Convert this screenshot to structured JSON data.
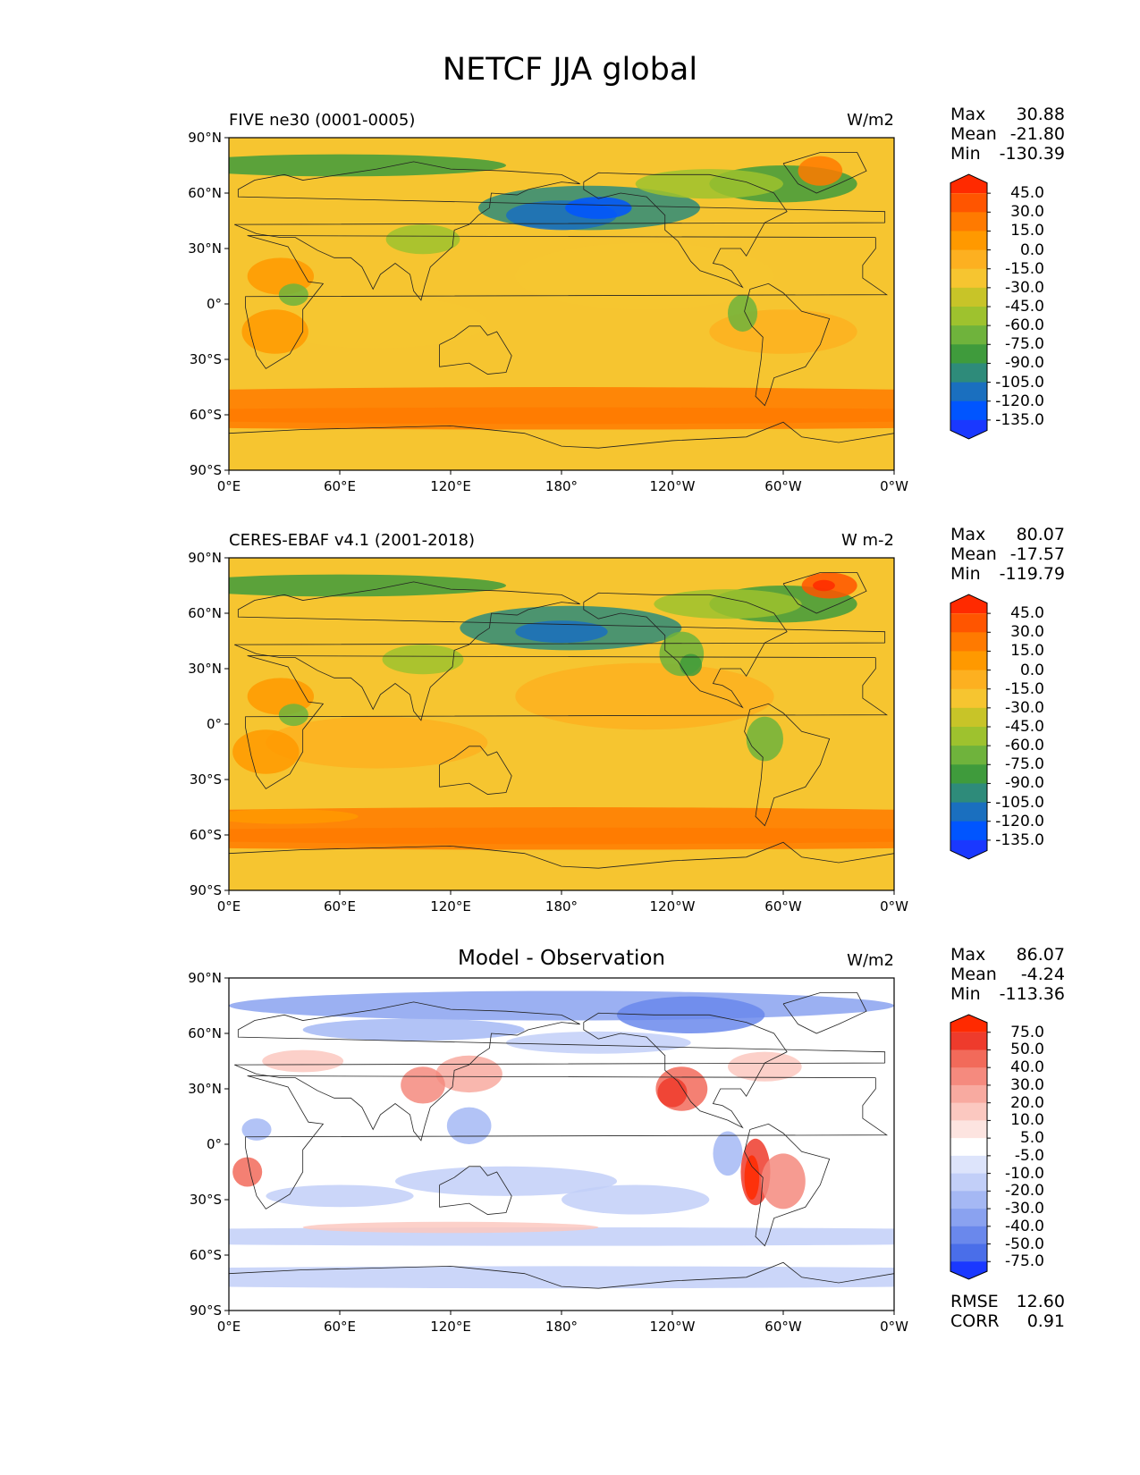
{
  "title": "NETCF JJA global",
  "lat_ticks": [
    "90°N",
    "60°N",
    "30°N",
    "0°",
    "30°S",
    "60°S",
    "90°S"
  ],
  "lon_ticks": [
    "0°E",
    "60°E",
    "120°E",
    "180°",
    "120°W",
    "60°W",
    "0°W"
  ],
  "panels": [
    {
      "title": "FIVE ne30 (0001-0005)",
      "units": "W/m2",
      "stats": [
        {
          "label": "Max",
          "value": "30.88"
        },
        {
          "label": "Mean",
          "value": "-21.80"
        },
        {
          "label": "Min",
          "value": "-130.39"
        }
      ],
      "colorbar": {
        "labels": [
          "45.0",
          "30.0",
          "15.0",
          "0.0",
          "-15.0",
          "-30.0",
          "-45.0",
          "-60.0",
          "-75.0",
          "-90.0",
          "-105.0",
          "-120.0",
          "-135.0"
        ],
        "colors": [
          "#ff2a00",
          "#ff5500",
          "#ff7a00",
          "#ff9900",
          "#fdb020",
          "#f6c530",
          "#c8c428",
          "#9ec22e",
          "#6fb33c",
          "#3f9b3c",
          "#2e8b7a",
          "#1a6fbf",
          "#0055ff",
          "#1a38ff"
        ]
      }
    },
    {
      "title": "CERES-EBAF v4.1 (2001-2018)",
      "units": "W m-2",
      "stats": [
        {
          "label": "Max",
          "value": "80.07"
        },
        {
          "label": "Mean",
          "value": "-17.57"
        },
        {
          "label": "Min",
          "value": "-119.79"
        }
      ],
      "colorbar": {
        "labels": [
          "45.0",
          "30.0",
          "15.0",
          "0.0",
          "-15.0",
          "-30.0",
          "-45.0",
          "-60.0",
          "-75.0",
          "-90.0",
          "-105.0",
          "-120.0",
          "-135.0"
        ],
        "colors": [
          "#ff2a00",
          "#ff5500",
          "#ff7a00",
          "#ff9900",
          "#fdb020",
          "#f6c530",
          "#c8c428",
          "#9ec22e",
          "#6fb33c",
          "#3f9b3c",
          "#2e8b7a",
          "#1a6fbf",
          "#0055ff",
          "#1a38ff"
        ]
      }
    },
    {
      "title": "Model - Observation",
      "units": "W/m2",
      "stats": [
        {
          "label": "Max",
          "value": "86.07"
        },
        {
          "label": "Mean",
          "value": "-4.24"
        },
        {
          "label": "Min",
          "value": "-113.36"
        }
      ],
      "extra_stats": [
        {
          "label": "RMSE",
          "value": "12.60"
        },
        {
          "label": "CORR",
          "value": "0.91"
        }
      ],
      "colorbar": {
        "labels": [
          "75.0",
          "50.0",
          "40.0",
          "30.0",
          "20.0",
          "10.0",
          "5.0",
          "-5.0",
          "-10.0",
          "-20.0",
          "-30.0",
          "-40.0",
          "-50.0",
          "-75.0"
        ],
        "colors": [
          "#ff2a00",
          "#ee3b2c",
          "#f26a5a",
          "#f58a7e",
          "#f8aaa0",
          "#fbc8c0",
          "#fde4e0",
          "#ffffff",
          "#dde4fb",
          "#c2cff8",
          "#a5b8f4",
          "#8aa2f0",
          "#6a88ec",
          "#4a6ee9",
          "#1a38ff"
        ]
      }
    }
  ]
}
